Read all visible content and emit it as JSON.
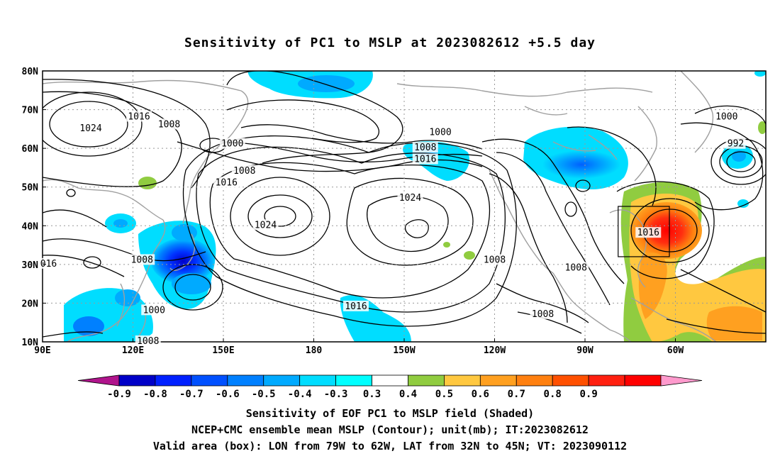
{
  "title": "Sensitivity of PC1 to MSLP at 2023082612 +5.5 day",
  "axes": {
    "lat_labels": [
      "80N",
      "70N",
      "60N",
      "50N",
      "40N",
      "30N",
      "20N",
      "10N"
    ],
    "lon_labels": [
      "90E",
      "120E",
      "150E",
      "180",
      "150W",
      "120W",
      "90W",
      "60W"
    ]
  },
  "colorbar": {
    "colors": [
      "#b0148c",
      "#0000c8",
      "#0020ff",
      "#0050ff",
      "#0080ff",
      "#00aaff",
      "#00ddff",
      "#00ffff",
      "#ffffff",
      "#90cc40",
      "#ffc840",
      "#ffa020",
      "#ff8010",
      "#ff5000",
      "#ff2010",
      "#ff0000",
      "#ff9acd"
    ],
    "tick_labels": [
      "-0.9",
      "-0.8",
      "-0.7",
      "-0.6",
      "-0.5",
      "-0.4",
      "-0.3",
      "0.3",
      "0.4",
      "0.5",
      "0.6",
      "0.7",
      "0.8",
      "0.9"
    ]
  },
  "contour_labels": [
    {
      "text": "1024",
      "lon": 106,
      "lat": 65
    },
    {
      "text": "1016",
      "lon": 122,
      "lat": 68
    },
    {
      "text": "1008",
      "lon": 132,
      "lat": 66
    },
    {
      "text": "1000",
      "lon": 153,
      "lat": 61
    },
    {
      "text": "1008",
      "lon": 157,
      "lat": 54
    },
    {
      "text": "1016",
      "lon": 151,
      "lat": 51
    },
    {
      "text": "1024",
      "lon": 164,
      "lat": 40
    },
    {
      "text": "1008",
      "lon": 123,
      "lat": 31
    },
    {
      "text": "016",
      "lon": 92,
      "lat": 30
    },
    {
      "text": "1000",
      "lon": 127,
      "lat": 18
    },
    {
      "text": "1008",
      "lon": 125,
      "lat": 10
    },
    {
      "text": "1000",
      "lon": -138,
      "lat": 64
    },
    {
      "text": "1008",
      "lon": -143,
      "lat": 60
    },
    {
      "text": "1016",
      "lon": -143,
      "lat": 57
    },
    {
      "text": "1024",
      "lon": -148,
      "lat": 47
    },
    {
      "text": "1016",
      "lon": -166,
      "lat": 19
    },
    {
      "text": "1008",
      "lon": -120,
      "lat": 31
    },
    {
      "text": "1008",
      "lon": -93,
      "lat": 29
    },
    {
      "text": "1008",
      "lon": -104,
      "lat": 17
    },
    {
      "text": "1000",
      "lon": -43,
      "lat": 68
    },
    {
      "text": "992",
      "lon": -40,
      "lat": 61
    },
    {
      "text": "1016",
      "lon": -69,
      "lat": 38
    }
  ],
  "valid_box": {
    "lon_min": -79,
    "lon_max": -62,
    "lat_min": 32,
    "lat_max": 45
  },
  "captions": {
    "line1": "Sensitivity of EOF PC1 to MSLP field (Shaded)",
    "line2": "NCEP+CMC ensemble mean MSLP (Contour); unit(mb); IT:2023082612",
    "line3": "Valid area (box): LON from 79W to 62W, LAT from 32N to 45N; VT: 2023090112"
  }
}
